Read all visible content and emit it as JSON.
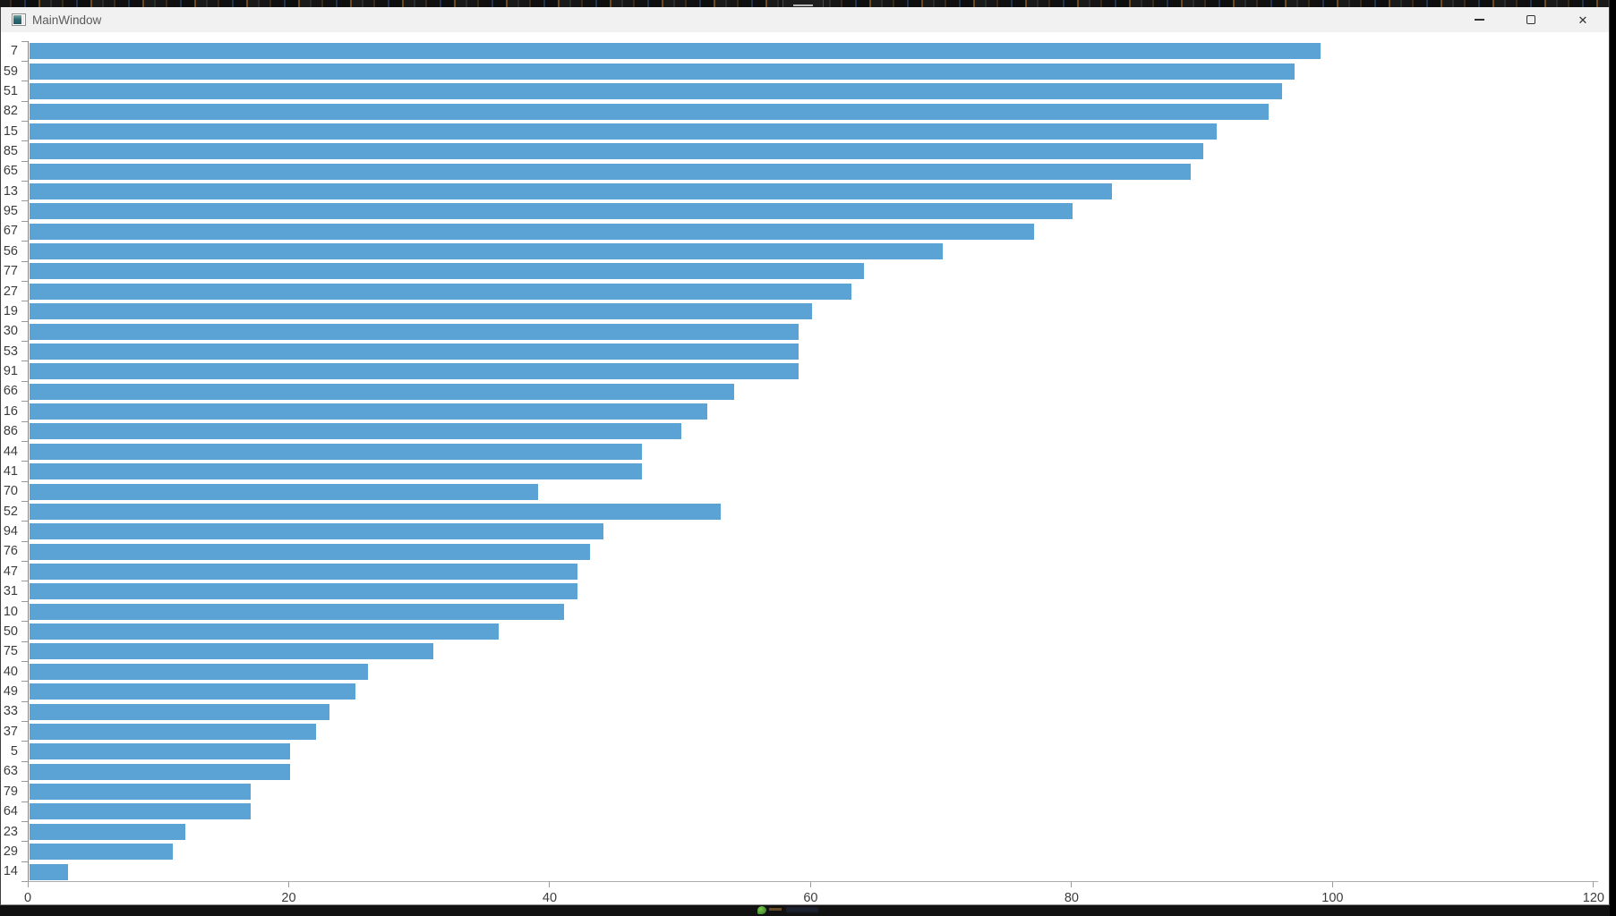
{
  "window": {
    "title": "MainWindow",
    "controls": [
      "minimize",
      "maximize",
      "close"
    ]
  },
  "icons": {
    "app-window-icon": "qt-window-glyph",
    "minimize-icon": "thin-dash",
    "maximize-icon": "outline-square",
    "close-icon": "✕",
    "green-app-icon": "green-leaf-dot"
  },
  "colors": {
    "bar": "#5ba3d4",
    "axis_line": "#adadad",
    "axis_spine": "#848484",
    "tick": "#9a9a9a",
    "label": "#3c3c3c",
    "titlebar_bg": "#f2f1f1",
    "plot_bg": "#ffffff"
  },
  "chart_data": {
    "type": "bar",
    "orientation": "horizontal",
    "title": "",
    "xlabel": "",
    "ylabel": "",
    "grid": false,
    "legend": null,
    "xlim": [
      0,
      120
    ],
    "x_ticks": [
      0,
      20,
      40,
      60,
      80,
      100,
      120
    ],
    "categories": [
      "7",
      "59",
      "51",
      "82",
      "15",
      "85",
      "65",
      "13",
      "95",
      "67",
      "56",
      "77",
      "27",
      "19",
      "30",
      "53",
      "91",
      "66",
      "16",
      "86",
      "44",
      "41",
      "70",
      "52",
      "94",
      "76",
      "47",
      "31",
      "10",
      "50",
      "75",
      "40",
      "49",
      "33",
      "37",
      "5",
      "63",
      "79",
      "64",
      "23",
      "29",
      "14"
    ],
    "values": [
      99,
      97,
      96,
      95,
      91,
      90,
      89,
      83,
      80,
      77,
      70,
      64,
      63,
      60,
      59,
      59,
      59,
      54,
      52,
      50,
      47,
      47,
      39,
      53,
      44,
      43,
      42,
      42,
      41,
      36,
      31,
      26,
      25,
      23,
      22,
      20,
      20,
      17,
      17,
      12,
      11,
      3
    ],
    "bar_color": "#5ba3d4"
  }
}
